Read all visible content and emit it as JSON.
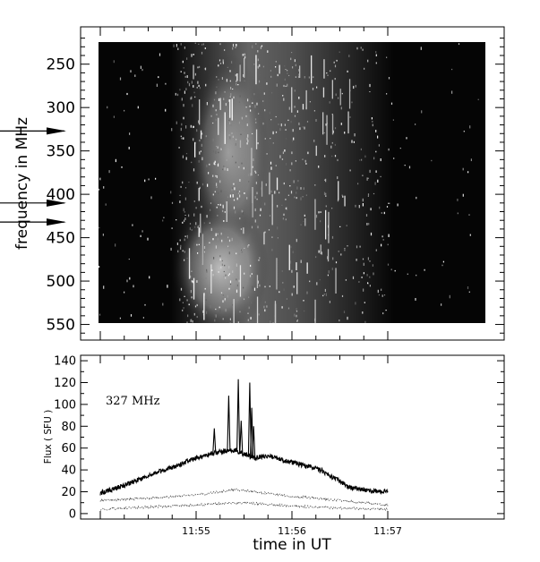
{
  "chart_data": [
    {
      "type": "heatmap",
      "title": "",
      "ylabel": "frequency in MHz",
      "ylim": [
        207,
        568
      ],
      "y_reversed": true,
      "yticks": [
        250,
        300,
        350,
        400,
        450,
        500,
        550
      ],
      "data_extent": {
        "freq_mhz": [
          217,
          560
        ],
        "time_min_range_ut": [
          "11:54.05",
          "11:57.05"
        ]
      },
      "colormap": "grayscale, bright = strong emission",
      "bright_feature": "broad vertical band of bright emission near 11:55.0-11:55.4 UT spanning about 260-560 MHz, with fine vertical striations to ~11:55.7",
      "frequency_markers_mhz": [
        327,
        410,
        432
      ],
      "colors": {
        "background": "#000000",
        "emission": "#ffffff"
      }
    },
    {
      "type": "line",
      "annotation": "327 MHz",
      "xlabel": "time in UT",
      "ylabel": "Flux ( SFU )",
      "xlim_minutes_after_11:54": [
        -0.05,
        3.05
      ],
      "ylim": [
        -5,
        145
      ],
      "xticks": [
        "11:55",
        "11:56",
        "11:57"
      ],
      "yticks": [
        0,
        20,
        40,
        60,
        80,
        100,
        120,
        140
      ],
      "series": [
        {
          "style": "solid",
          "points": [
            {
              "t": "11:54.00",
              "y": 19
            },
            {
              "t": "11:54.20",
              "y": 24
            },
            {
              "t": "11:54.40",
              "y": 31
            },
            {
              "t": "11:54.60",
              "y": 38
            },
            {
              "t": "11:54.80",
              "y": 44
            },
            {
              "t": "11:55.00",
              "y": 51
            },
            {
              "t": "11:55.20",
              "y": 56
            },
            {
              "t": "11:55.40",
              "y": 58
            },
            {
              "t": "11:55.60",
              "y": 51
            },
            {
              "t": "11:55.75",
              "y": 53
            },
            {
              "t": "11:55.90",
              "y": 49
            },
            {
              "t": "11:56.10",
              "y": 45
            },
            {
              "t": "11:56.30",
              "y": 40
            },
            {
              "t": "11:56.45",
              "y": 32
            },
            {
              "t": "11:56.60",
              "y": 24
            },
            {
              "t": "11:56.80",
              "y": 21
            },
            {
              "t": "11:57.00",
              "y": 20
            }
          ],
          "spikes": [
            {
              "t": "11:55.19",
              "y": 78
            },
            {
              "t": "11:55.34",
              "y": 108
            },
            {
              "t": "11:55.44",
              "y": 123
            },
            {
              "t": "11:55.47",
              "y": 85
            },
            {
              "t": "11:55.56",
              "y": 120
            },
            {
              "t": "11:55.58",
              "y": 97
            },
            {
              "t": "11:55.60",
              "y": 80
            }
          ]
        },
        {
          "style": "dotted",
          "points": [
            {
              "t": "11:54.00",
              "y": 12
            },
            {
              "t": "11:54.50",
              "y": 14
            },
            {
              "t": "11:55.00",
              "y": 17
            },
            {
              "t": "11:55.40",
              "y": 22
            },
            {
              "t": "11:55.60",
              "y": 20
            },
            {
              "t": "11:56.00",
              "y": 16
            },
            {
              "t": "11:56.50",
              "y": 12
            },
            {
              "t": "11:57.00",
              "y": 8
            }
          ]
        },
        {
          "style": "dotted",
          "points": [
            {
              "t": "11:54.00",
              "y": 4
            },
            {
              "t": "11:54.50",
              "y": 6
            },
            {
              "t": "11:55.00",
              "y": 8
            },
            {
              "t": "11:55.50",
              "y": 10
            },
            {
              "t": "11:56.00",
              "y": 7
            },
            {
              "t": "11:56.50",
              "y": 5
            },
            {
              "t": "11:57.00",
              "y": 4
            }
          ]
        }
      ]
    }
  ]
}
